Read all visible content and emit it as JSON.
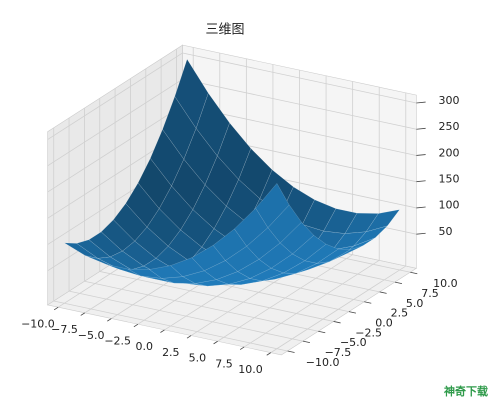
{
  "chart_data": {
    "type": "surface",
    "title": "三维图",
    "x": [
      -10,
      -8,
      -6,
      -4,
      -2,
      0,
      2,
      4,
      6,
      8,
      10
    ],
    "y": [
      -10,
      -8,
      -6,
      -4,
      -2,
      0,
      2,
      4,
      6,
      8,
      10
    ],
    "z": [
      [
        100,
        84,
        76,
        76,
        84,
        100,
        124,
        156,
        196,
        244,
        300
      ],
      [
        84,
        64,
        52,
        48,
        52,
        64,
        84,
        112,
        148,
        192,
        244
      ],
      [
        76,
        52,
        36,
        28,
        28,
        36,
        52,
        76,
        108,
        148,
        196
      ],
      [
        76,
        48,
        28,
        16,
        12,
        16,
        28,
        48,
        76,
        112,
        156
      ],
      [
        84,
        52,
        28,
        12,
        4,
        4,
        12,
        28,
        52,
        84,
        124
      ],
      [
        100,
        64,
        36,
        16,
        4,
        0,
        4,
        16,
        36,
        64,
        100
      ],
      [
        124,
        84,
        52,
        28,
        12,
        4,
        4,
        12,
        28,
        52,
        84
      ],
      [
        156,
        112,
        76,
        48,
        28,
        16,
        12,
        16,
        28,
        48,
        76
      ],
      [
        196,
        148,
        108,
        76,
        52,
        36,
        28,
        28,
        36,
        52,
        76
      ],
      [
        244,
        192,
        148,
        112,
        84,
        64,
        52,
        48,
        52,
        64,
        84
      ],
      [
        300,
        244,
        196,
        156,
        124,
        100,
        84,
        76,
        76,
        84,
        100
      ]
    ],
    "color": "#1f77b4",
    "xlim": [
      -11,
      11
    ],
    "ylim": [
      -11,
      11
    ],
    "zlim": [
      -15,
      315
    ],
    "xticks": [
      {
        "value": -10,
        "label": "−10.0"
      },
      {
        "value": -7.5,
        "label": "−7.5"
      },
      {
        "value": -5,
        "label": "−5.0"
      },
      {
        "value": -2.5,
        "label": "−2.5"
      },
      {
        "value": 0,
        "label": "0.0"
      },
      {
        "value": 2.5,
        "label": "2.5"
      },
      {
        "value": 5,
        "label": "5.0"
      },
      {
        "value": 7.5,
        "label": "7.5"
      },
      {
        "value": 10,
        "label": "10.0"
      }
    ],
    "yticks": [
      {
        "value": -10,
        "label": "−10.0"
      },
      {
        "value": -7.5,
        "label": "−7.5"
      },
      {
        "value": -5,
        "label": "−5.0"
      },
      {
        "value": -2.5,
        "label": "−2.5"
      },
      {
        "value": 0,
        "label": "0.0"
      },
      {
        "value": 2.5,
        "label": "2.5"
      },
      {
        "value": 5,
        "label": "5.0"
      },
      {
        "value": 7.5,
        "label": "7.5"
      },
      {
        "value": 10,
        "label": "10.0"
      }
    ],
    "zticks": [
      50,
      100,
      150,
      200,
      250,
      300
    ],
    "azimuth": -60,
    "elevation": 30,
    "grid": true
  },
  "watermark": "神奇下载"
}
